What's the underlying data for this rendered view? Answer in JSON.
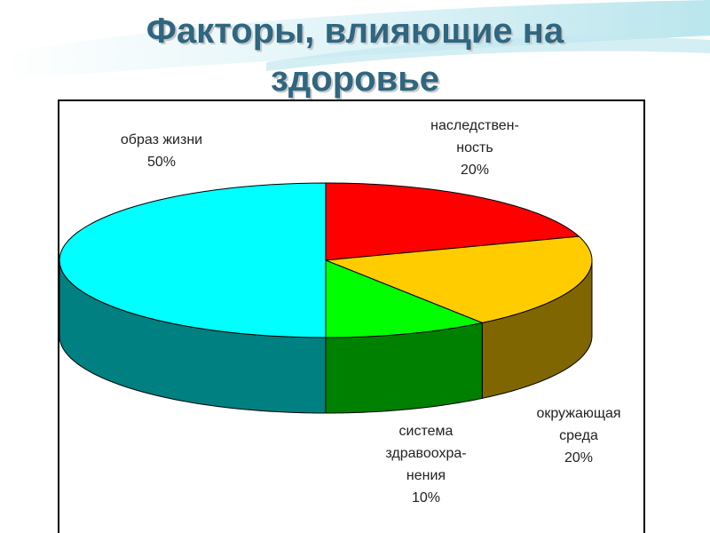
{
  "chart_data": {
    "type": "pie3d",
    "title": "Факторы, влияющие на здоровье",
    "categories": [
      "наследствен-\nность",
      "окружающая\nсреда",
      "система\nздравоохра-\nнения",
      "образ жизни"
    ],
    "values": [
      20,
      20,
      10,
      50
    ],
    "value_labels": [
      "20%",
      "20%",
      "10%",
      "50%"
    ],
    "colors": [
      "#ff0000",
      "#ffcc00",
      "#00ff00",
      "#00ffff"
    ],
    "side_colors": [
      "#800000",
      "#806600",
      "#008000",
      "#008080"
    ]
  }
}
